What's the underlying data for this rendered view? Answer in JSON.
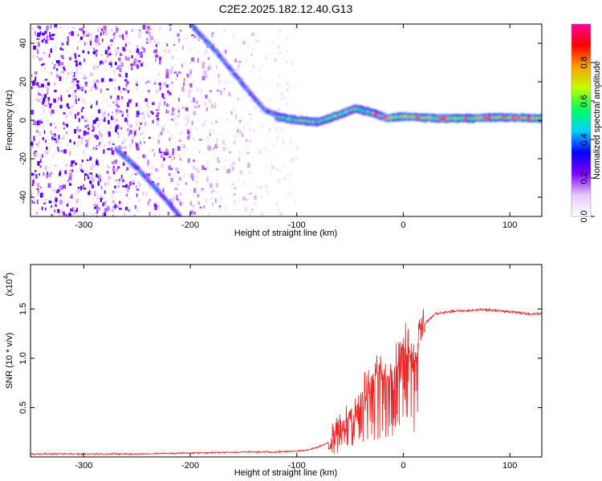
{
  "chart_data": [
    {
      "type": "heatmap",
      "title": "C2E2.2025.182.12.40.G13",
      "xlabel": "Height of straight line (km)",
      "ylabel": "Frequency (Hz)",
      "xlim": [
        -350,
        130
      ],
      "ylim": [
        -50,
        50
      ],
      "xticks": [
        -300,
        -200,
        -100,
        0,
        100
      ],
      "yticks": [
        -40,
        -20,
        0,
        20,
        40
      ],
      "grid": false,
      "colorbar": {
        "label": "Normalized spectral amplitude",
        "range": [
          0,
          1
        ],
        "ticks": [
          0.0,
          0.2,
          0.4,
          0.6,
          0.8
        ],
        "colors": [
          "#ffffff",
          "#e6c8ff",
          "#8000ff",
          "#0000ff",
          "#00d0ff",
          "#00ff60",
          "#c0ff00",
          "#ffa000",
          "#ff0000",
          "#ff00a0"
        ]
      },
      "features": [
        {
          "name": "",
          "x": [
            -200,
            -175,
            -150,
            -130,
            -115
          ],
          "y": [
            50,
            35,
            18,
            5,
            2
          ]
        },
        {
          "name": "",
          "x": [
            -270,
            -250,
            -230,
            -210
          ],
          "y": [
            -15,
            -25,
            -37,
            -50
          ]
        },
        {
          "name": "",
          "x": [
            -120,
            -100,
            -80,
            -60,
            -45,
            -30,
            -15,
            0,
            30,
            60,
            90,
            130
          ],
          "y": [
            2,
            0,
            -1,
            3,
            6,
            4,
            1,
            2,
            1,
            1,
            1.5,
            1
          ]
        }
      ]
    },
    {
      "type": "line",
      "xlabel": "Height of straight line (km)",
      "ylabel": "SNR (10 * v/v)",
      "y_multiplier": "(x10",
      "y_multiplier_exp": "4",
      "xlim": [
        -350,
        130
      ],
      "ylim": [
        0,
        1.95
      ],
      "xticks": [
        -300,
        -200,
        -100,
        0,
        100
      ],
      "yticks": [
        0.5,
        1.0,
        1.5
      ],
      "grid": false,
      "series": [
        {
          "color": "#ee2222",
          "x": [
            -350,
            -300,
            -250,
            -200,
            -150,
            -120,
            -100,
            -90,
            -80,
            -70,
            -65,
            -60,
            -55,
            -50,
            -45,
            -40,
            -35,
            -30,
            -25,
            -20,
            -15,
            -10,
            -5,
            0,
            5,
            10,
            15,
            20,
            25,
            30,
            40,
            50,
            60,
            70,
            80,
            90,
            100,
            110,
            120,
            130
          ],
          "y": [
            0.03,
            0.03,
            0.03,
            0.04,
            0.05,
            0.05,
            0.06,
            0.07,
            0.1,
            0.15,
            0.22,
            0.3,
            0.38,
            0.45,
            0.5,
            0.6,
            0.7,
            0.8,
            0.85,
            0.8,
            0.75,
            0.9,
            0.95,
            1.1,
            1.2,
            1.05,
            1.25,
            1.35,
            1.4,
            1.45,
            1.47,
            1.48,
            1.48,
            1.49,
            1.49,
            1.48,
            1.47,
            1.46,
            1.45,
            1.45
          ]
        }
      ]
    }
  ]
}
